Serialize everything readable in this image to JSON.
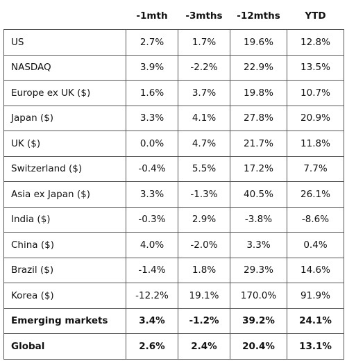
{
  "table": {
    "columns": [
      "-1mth",
      "-3mths",
      "-12mths",
      "YTD"
    ],
    "rows": [
      {
        "label": "US",
        "values": [
          "2.7%",
          "1.7%",
          "19.6%",
          "12.8%"
        ]
      },
      {
        "label": "NASDAQ",
        "values": [
          "3.9%",
          "-2.2%",
          "22.9%",
          "13.5%"
        ]
      },
      {
        "label": "Europe ex UK ($)",
        "values": [
          "1.6%",
          "3.7%",
          "19.8%",
          "10.7%"
        ]
      },
      {
        "label": "Japan ($)",
        "values": [
          "3.3%",
          "4.1%",
          "27.8%",
          "20.9%"
        ]
      },
      {
        "label": "UK ($)",
        "values": [
          "0.0%",
          "4.7%",
          "21.7%",
          "11.8%"
        ]
      },
      {
        "label": "Switzerland ($)",
        "values": [
          "-0.4%",
          "5.5%",
          "17.2%",
          "7.7%"
        ]
      },
      {
        "label": "Asia ex Japan ($)",
        "values": [
          "3.3%",
          "-1.3%",
          "40.5%",
          "26.1%"
        ]
      },
      {
        "label": "India ($)",
        "values": [
          "-0.3%",
          "2.9%",
          "-3.8%",
          "-8.6%"
        ]
      },
      {
        "label": "China ($)",
        "values": [
          "4.0%",
          "-2.0%",
          "3.3%",
          "0.4%"
        ]
      },
      {
        "label": "Brazil ($)",
        "values": [
          "-1.4%",
          "1.8%",
          "29.3%",
          "14.6%"
        ]
      },
      {
        "label": "Korea ($)",
        "values": [
          "-12.2%",
          "19.1%",
          "170.0%",
          "91.9%"
        ]
      },
      {
        "label": "Emerging markets",
        "values": [
          "3.4%",
          "-1.2%",
          "39.2%",
          "24.1%"
        ]
      },
      {
        "label": "Global",
        "values": [
          "2.6%",
          "2.4%",
          "20.4%",
          "13.1%"
        ]
      }
    ]
  }
}
